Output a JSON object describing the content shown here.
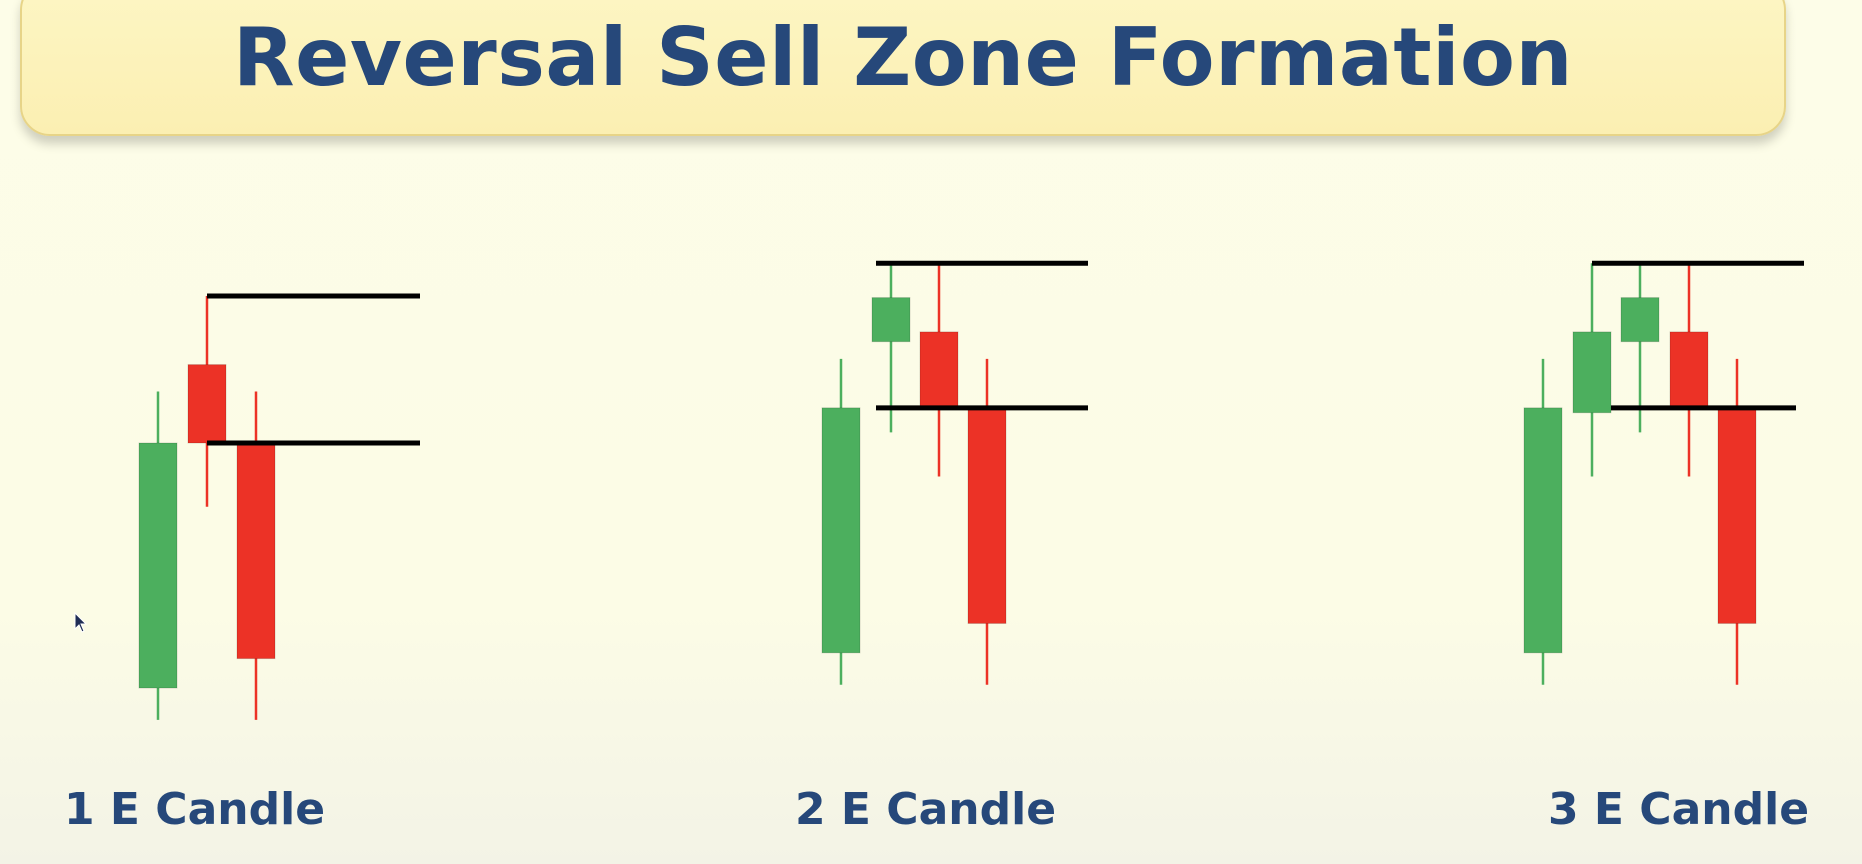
{
  "title": "Reversal Sell Zone Formation",
  "colors": {
    "bullish": "#4caf5e",
    "bearish": "#ec3226",
    "zone_line": "#000000",
    "text": "#26487a"
  },
  "patterns": [
    {
      "label": "1 E Candle",
      "candles": [
        {
          "type": "bullish",
          "open": 0,
          "close": 100,
          "high": 121,
          "low": -13
        },
        {
          "type": "bearish",
          "open": 132,
          "close": 100,
          "high": 160,
          "low": 74
        },
        {
          "type": "bearish",
          "open": 100,
          "close": 12,
          "high": 121,
          "low": -13
        }
      ],
      "zone": {
        "top": 160,
        "bottom": 100
      }
    },
    {
      "label": "2 E Candle",
      "candles": [
        {
          "type": "bullish",
          "open": 7,
          "close": 107,
          "high": 127,
          "low": -6
        },
        {
          "type": "bullish",
          "open": 134,
          "close": 152,
          "high": 166,
          "low": 97
        },
        {
          "type": "bearish",
          "open": 138,
          "close": 107,
          "high": 166,
          "low": 79
        },
        {
          "type": "bearish",
          "open": 107,
          "close": 19,
          "high": 127,
          "low": -6
        }
      ],
      "zone": {
        "top": 166,
        "bottom": 107
      }
    },
    {
      "label": "3 E Candle",
      "candles": [
        {
          "type": "bullish",
          "open": 7,
          "close": 107,
          "high": 127,
          "low": -6
        },
        {
          "type": "bullish",
          "open": 105,
          "close": 138,
          "high": 166,
          "low": 79
        },
        {
          "type": "bullish",
          "open": 134,
          "close": 152,
          "high": 166,
          "low": 97
        },
        {
          "type": "bearish",
          "open": 138,
          "close": 107,
          "high": 166,
          "low": 79
        },
        {
          "type": "bearish",
          "open": 107,
          "close": 19,
          "high": 127,
          "low": -6
        }
      ],
      "zone": {
        "top": 166,
        "bottom": 107
      }
    }
  ]
}
